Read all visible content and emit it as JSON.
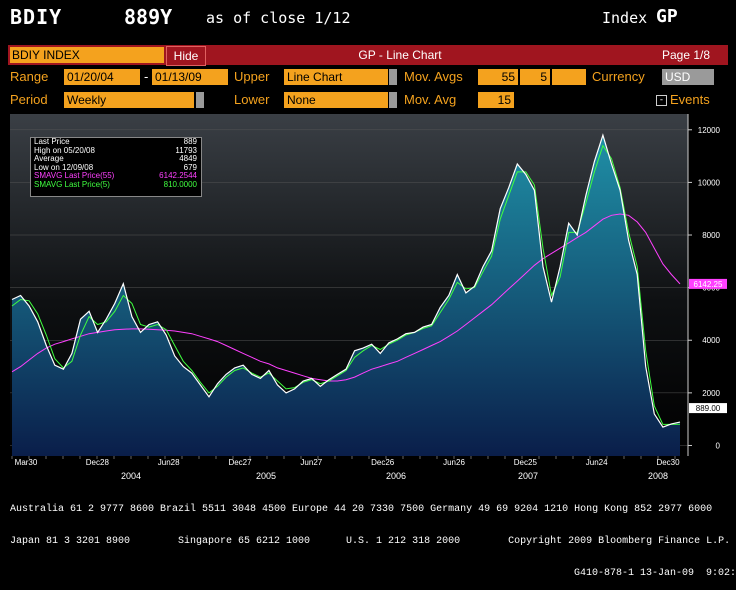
{
  "header": {
    "ticker": "BDIY",
    "price": "889Y",
    "as_of": "as of close  1/12",
    "index_label": "Index",
    "index_code": "GP"
  },
  "bar": {
    "security": "BDIY INDEX",
    "hide_label": "Hide",
    "title": "GP - Line Chart",
    "page": "Page 1/8"
  },
  "row1": {
    "range_label": "Range",
    "start_date": "01/20/04",
    "dash": "-",
    "end_date": "01/13/09",
    "upper_label": "Upper",
    "upper_value": "Line Chart",
    "movavgs_label": "Mov. Avgs",
    "ma1": "55",
    "ma2": "5",
    "ma3": "",
    "currency_label": "Currency",
    "currency": "USD"
  },
  "row2": {
    "period_label": "Period",
    "period_value": "Weekly",
    "lower_label": "Lower",
    "lower_value": "None",
    "movavg_label": "Mov. Avg",
    "movavg_value": "15",
    "events_label": "Events",
    "events_check": "-"
  },
  "legend": {
    "rows": [
      {
        "label": "Last Price",
        "value": "889",
        "color": "#ffffff"
      },
      {
        "label": "High on 05/20/08",
        "value": "11793",
        "color": "#ffffff"
      },
      {
        "label": "Average",
        "value": "4849",
        "color": "#ffffff"
      },
      {
        "label": "Low on 12/09/08",
        "value": "679",
        "color": "#ffffff"
      },
      {
        "label": "SMAVG Last Price(55)",
        "value": "6142.2544",
        "color": "#ff40ff"
      },
      {
        "label": "SMAVG Last Price(5)",
        "value": "810.0000",
        "color": "#40ff40"
      }
    ]
  },
  "chart_data": {
    "type": "line",
    "y_ticks": [
      "12000",
      "10000",
      "8000",
      "6000",
      "4000",
      "2000",
      "0"
    ],
    "ylim": [
      -400,
      12600
    ],
    "x_month_labels": [
      "Mar30",
      "Dec28",
      "Jun28",
      "Dec27",
      "Jun27",
      "Dec26",
      "Jun26",
      "Dec25",
      "Jun24",
      "Dec30"
    ],
    "x_year_labels": [
      "2004",
      "2005",
      "2006",
      "2007",
      "2008"
    ],
    "last_price_tag": "889.00",
    "sma55_tag": "6142.25",
    "series": [
      {
        "name": "Last Price",
        "color": "#ffffff",
        "fill": true,
        "values": [
          5550,
          5700,
          5300,
          4700,
          3800,
          3050,
          2900,
          3500,
          4800,
          5100,
          4300,
          4800,
          5400,
          6150,
          4900,
          4300,
          4600,
          4700,
          4200,
          3400,
          3000,
          2750,
          2300,
          1850,
          2350,
          2700,
          2950,
          3050,
          2700,
          2550,
          2850,
          2300,
          2000,
          2150,
          2450,
          2550,
          2250,
          2500,
          2700,
          2900,
          3600,
          3700,
          3850,
          3500,
          3900,
          4050,
          4250,
          4300,
          4500,
          4600,
          5250,
          5700,
          6500,
          5800,
          6050,
          6800,
          7400,
          9000,
          9800,
          10700,
          10300,
          9700,
          6800,
          5450,
          6800,
          8450,
          8000,
          9500,
          10800,
          11793,
          10700,
          9700,
          7800,
          6500,
          3000,
          1200,
          700,
          820,
          889
        ]
      },
      {
        "name": "SMAVG Last Price(5)",
        "color": "#40ff40",
        "fill": false,
        "values": [
          5300,
          5550,
          5500,
          5000,
          4200,
          3300,
          2950,
          3200,
          4200,
          4900,
          4600,
          4700,
          5100,
          5700,
          5400,
          4600,
          4500,
          4600,
          4400,
          3800,
          3200,
          2850,
          2400,
          2000,
          2250,
          2600,
          2850,
          2950,
          2750,
          2600,
          2750,
          2450,
          2150,
          2200,
          2400,
          2500,
          2350,
          2450,
          2650,
          2850,
          3350,
          3600,
          3800,
          3650,
          3850,
          4000,
          4200,
          4300,
          4450,
          4550,
          5050,
          5550,
          6200,
          5950,
          6000,
          6600,
          7200,
          8600,
          9500,
          10400,
          10400,
          9900,
          7500,
          5700,
          6400,
          8100,
          8100,
          9200,
          10400,
          11400,
          10900,
          9800,
          8100,
          6800,
          3600,
          1500,
          800,
          800,
          810
        ]
      },
      {
        "name": "SMAVG Last Price(55)",
        "color": "#ff40ff",
        "fill": false,
        "values": [
          2800,
          3000,
          3250,
          3500,
          3700,
          3850,
          3950,
          4050,
          4150,
          4250,
          4300,
          4350,
          4400,
          4420,
          4430,
          4430,
          4420,
          4400,
          4380,
          4350,
          4300,
          4250,
          4150,
          4050,
          3950,
          3800,
          3650,
          3500,
          3350,
          3200,
          3100,
          2950,
          2850,
          2750,
          2650,
          2550,
          2500,
          2450,
          2450,
          2500,
          2600,
          2750,
          2900,
          3000,
          3100,
          3200,
          3350,
          3500,
          3650,
          3800,
          3950,
          4150,
          4350,
          4600,
          4850,
          5100,
          5350,
          5650,
          5950,
          6250,
          6550,
          6850,
          7100,
          7300,
          7500,
          7700,
          7900,
          8100,
          8350,
          8600,
          8750,
          8800,
          8750,
          8500,
          8100,
          7500,
          6900,
          6500,
          6142
        ]
      }
    ]
  },
  "footer": {
    "line1": "Australia 61 2 9777 8600 Brazil 5511 3048 4500 Europe 44 20 7330 7500 Germany 49 69 9204 1210 Hong Kong 852 2977 6000",
    "line2": "Japan 81 3 3201 8900        Singapore 65 6212 1000      U.S. 1 212 318 2000        Copyright 2009 Bloomberg Finance L.P.",
    "line3": "G410-878-1 13-Jan-09  9:02:17"
  }
}
